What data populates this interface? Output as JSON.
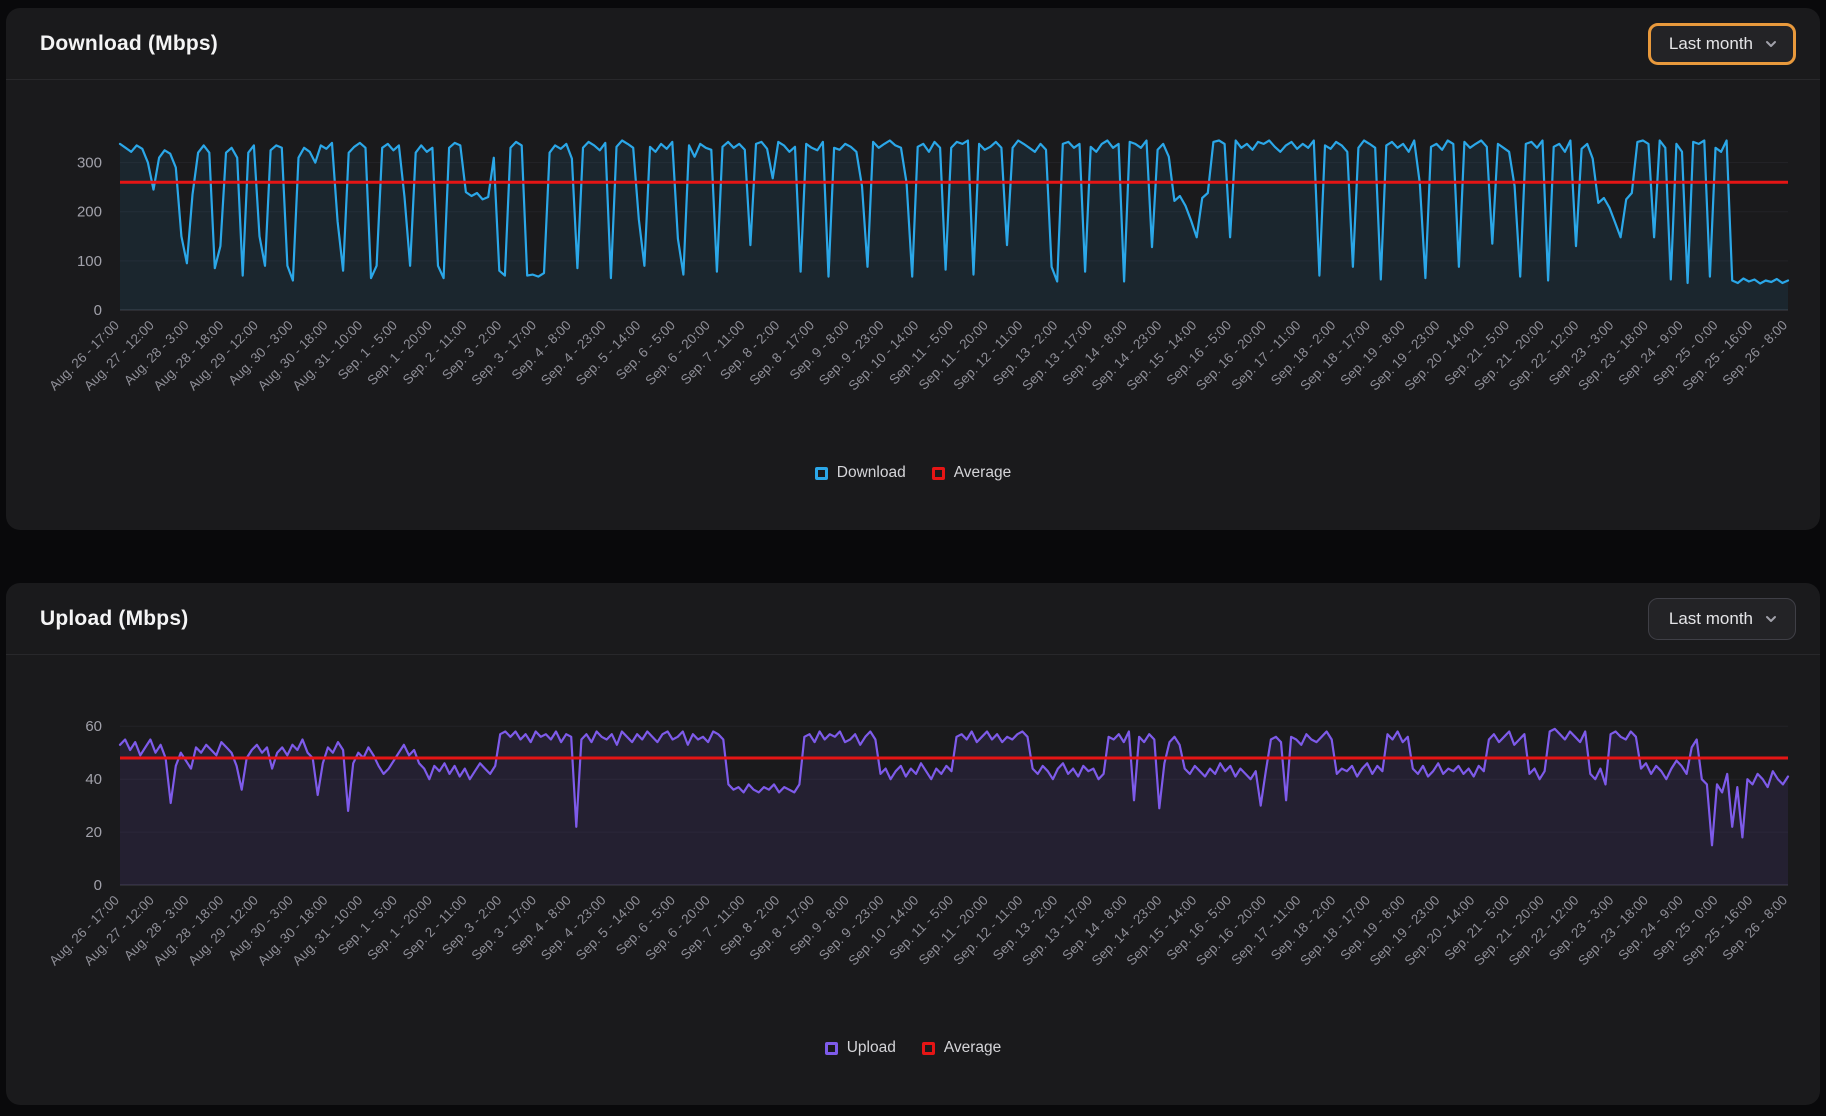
{
  "page": {
    "background": "#09090b",
    "card_background": "#1a1a1c"
  },
  "download_card": {
    "title": "Download (Mbps)",
    "range_selector": {
      "label": "Last month",
      "focused": true,
      "focus_ring_color": "#e8993c"
    }
  },
  "upload_card": {
    "title": "Upload (Mbps)",
    "range_selector": {
      "label": "Last month",
      "focused": false
    }
  },
  "chart_data": [
    {
      "type": "line",
      "title": "Download (Mbps)",
      "grid": "horizontal",
      "legend_position": "bottom",
      "ylim": [
        0,
        350
      ],
      "y_ticks": [
        0,
        100,
        200,
        300
      ],
      "average_line": {
        "name": "Average",
        "value": 260,
        "color": "#e51515"
      },
      "x_tick_labels": [
        "Aug. 26 - 17:00",
        "Aug. 27 - 12:00",
        "Aug. 28 - 3:00",
        "Aug. 28 - 18:00",
        "Aug. 29 - 12:00",
        "Aug. 30 - 3:00",
        "Aug. 30 - 18:00",
        "Aug. 31 - 10:00",
        "Sep. 1 - 5:00",
        "Sep. 1 - 20:00",
        "Sep. 2 - 11:00",
        "Sep. 3 - 2:00",
        "Sep. 3 - 17:00",
        "Sep. 4 - 8:00",
        "Sep. 4 - 23:00",
        "Sep. 5 - 14:00",
        "Sep. 6 - 5:00",
        "Sep. 6 - 20:00",
        "Sep. 7 - 11:00",
        "Sep. 8 - 2:00",
        "Sep. 8 - 17:00",
        "Sep. 9 - 8:00",
        "Sep. 9 - 23:00",
        "Sep. 10 - 14:00",
        "Sep. 11 - 5:00",
        "Sep. 11 - 20:00",
        "Sep. 12 - 11:00",
        "Sep. 13 - 2:00",
        "Sep. 13 - 17:00",
        "Sep. 14 - 8:00",
        "Sep. 14 - 23:00",
        "Sep. 15 - 14:00",
        "Sep. 16 - 5:00",
        "Sep. 16 - 20:00",
        "Sep. 17 - 11:00",
        "Sep. 18 - 2:00",
        "Sep. 18 - 17:00",
        "Sep. 19 - 8:00",
        "Sep. 19 - 23:00",
        "Sep. 20 - 14:00",
        "Sep. 21 - 5:00",
        "Sep. 21 - 20:00",
        "Sep. 22 - 12:00",
        "Sep. 23 - 3:00",
        "Sep. 23 - 18:00",
        "Sep. 24 - 9:00",
        "Sep. 25 - 0:00",
        "Sep. 25 - 16:00",
        "Sep. 26 - 8:00"
      ],
      "series": [
        {
          "name": "Download",
          "color": "#2ba7e8",
          "fill": "rgba(43,167,232,0.09)",
          "values": [
            338,
            330,
            322,
            335,
            328,
            300,
            245,
            310,
            325,
            318,
            290,
            150,
            95,
            235,
            320,
            335,
            320,
            85,
            130,
            320,
            330,
            310,
            70,
            320,
            335,
            150,
            90,
            325,
            335,
            330,
            90,
            60,
            310,
            330,
            322,
            300,
            335,
            328,
            340,
            180,
            80,
            320,
            332,
            340,
            330,
            65,
            90,
            330,
            338,
            325,
            335,
            230,
            90,
            320,
            335,
            322,
            330,
            90,
            65,
            330,
            340,
            335,
            240,
            232,
            238,
            225,
            230,
            310,
            80,
            70,
            330,
            342,
            335,
            70,
            72,
            68,
            75,
            320,
            335,
            328,
            338,
            308,
            85,
            330,
            342,
            335,
            325,
            340,
            65,
            332,
            345,
            338,
            330,
            185,
            90,
            332,
            322,
            338,
            328,
            342,
            145,
            72,
            335,
            312,
            338,
            330,
            326,
            78,
            332,
            342,
            330,
            338,
            326,
            132,
            338,
            342,
            328,
            268,
            342,
            335,
            322,
            332,
            78,
            338,
            330,
            325,
            342,
            68,
            330,
            326,
            338,
            332,
            322,
            252,
            88,
            342,
            330,
            338,
            345,
            335,
            330,
            258,
            68,
            332,
            338,
            322,
            342,
            330,
            82,
            330,
            342,
            338,
            345,
            72,
            338,
            326,
            332,
            342,
            330,
            132,
            330,
            345,
            338,
            330,
            322,
            338,
            326,
            88,
            58,
            338,
            342,
            330,
            338,
            78,
            332,
            322,
            338,
            345,
            330,
            338,
            58,
            342,
            338,
            330,
            345,
            128,
            326,
            338,
            312,
            222,
            232,
            212,
            182,
            148,
            228,
            238,
            342,
            345,
            338,
            148,
            345,
            330,
            338,
            326,
            342,
            338,
            345,
            332,
            322,
            335,
            342,
            328,
            338,
            330,
            345,
            70,
            335,
            328,
            342,
            335,
            322,
            88,
            330,
            345,
            338,
            330,
            62,
            335,
            342,
            330,
            338,
            322,
            345,
            258,
            65,
            332,
            338,
            326,
            345,
            338,
            88,
            342,
            330,
            338,
            345,
            332,
            135,
            338,
            330,
            322,
            252,
            68,
            338,
            342,
            330,
            345,
            60,
            332,
            338,
            322,
            345,
            130,
            328,
            338,
            308,
            218,
            228,
            208,
            178,
            148,
            225,
            238,
            342,
            345,
            338,
            148,
            345,
            330,
            62,
            338,
            322,
            55,
            342,
            338,
            345,
            68,
            330,
            322,
            345,
            60,
            55,
            64,
            58,
            62,
            54,
            60,
            57,
            63,
            55,
            60
          ]
        }
      ]
    },
    {
      "type": "line",
      "title": "Upload (Mbps)",
      "grid": "horizontal",
      "legend_position": "bottom",
      "ylim": [
        0,
        65
      ],
      "y_ticks": [
        0,
        20,
        40,
        60
      ],
      "average_line": {
        "name": "Average",
        "value": 48,
        "color": "#e51515"
      },
      "x_tick_labels": [
        "Aug. 26 - 17:00",
        "Aug. 27 - 12:00",
        "Aug. 28 - 3:00",
        "Aug. 28 - 18:00",
        "Aug. 29 - 12:00",
        "Aug. 30 - 3:00",
        "Aug. 30 - 18:00",
        "Aug. 31 - 10:00",
        "Sep. 1 - 5:00",
        "Sep. 1 - 20:00",
        "Sep. 2 - 11:00",
        "Sep. 3 - 2:00",
        "Sep. 3 - 17:00",
        "Sep. 4 - 8:00",
        "Sep. 4 - 23:00",
        "Sep. 5 - 14:00",
        "Sep. 6 - 5:00",
        "Sep. 6 - 20:00",
        "Sep. 7 - 11:00",
        "Sep. 8 - 2:00",
        "Sep. 8 - 17:00",
        "Sep. 9 - 8:00",
        "Sep. 9 - 23:00",
        "Sep. 10 - 14:00",
        "Sep. 11 - 5:00",
        "Sep. 11 - 20:00",
        "Sep. 12 - 11:00",
        "Sep. 13 - 2:00",
        "Sep. 13 - 17:00",
        "Sep. 14 - 8:00",
        "Sep. 14 - 23:00",
        "Sep. 15 - 14:00",
        "Sep. 16 - 5:00",
        "Sep. 16 - 20:00",
        "Sep. 17 - 11:00",
        "Sep. 18 - 2:00",
        "Sep. 18 - 17:00",
        "Sep. 19 - 8:00",
        "Sep. 19 - 23:00",
        "Sep. 20 - 14:00",
        "Sep. 21 - 5:00",
        "Sep. 21 - 20:00",
        "Sep. 22 - 12:00",
        "Sep. 23 - 3:00",
        "Sep. 23 - 18:00",
        "Sep. 24 - 9:00",
        "Sep. 25 - 0:00",
        "Sep. 25 - 16:00",
        "Sep. 26 - 8:00"
      ],
      "series": [
        {
          "name": "Upload",
          "color": "#7e5bea",
          "fill": "rgba(126,91,234,0.10)",
          "values": [
            53,
            55,
            51,
            54,
            49,
            52,
            55,
            50,
            53,
            48,
            31,
            45,
            50,
            47,
            44,
            52,
            50,
            53,
            51,
            49,
            54,
            52,
            50,
            45,
            36,
            48,
            51,
            53,
            50,
            52,
            44,
            50,
            52,
            49,
            53,
            51,
            55,
            50,
            48,
            34,
            46,
            52,
            50,
            54,
            51,
            28,
            46,
            50,
            48,
            52,
            49,
            45,
            42,
            44,
            47,
            50,
            53,
            49,
            51,
            46,
            44,
            40,
            45,
            43,
            46,
            42,
            45,
            41,
            44,
            40,
            43,
            46,
            44,
            42,
            45,
            57,
            58,
            56,
            58,
            55,
            57,
            54,
            58,
            56,
            57,
            55,
            58,
            54,
            57,
            56,
            22,
            55,
            57,
            54,
            58,
            56,
            55,
            57,
            53,
            58,
            56,
            54,
            57,
            55,
            58,
            56,
            54,
            57,
            58,
            55,
            56,
            58,
            53,
            57,
            55,
            56,
            54,
            58,
            57,
            55,
            38,
            36,
            37,
            35,
            38,
            36,
            35,
            37,
            36,
            38,
            35,
            37,
            36,
            35,
            38,
            56,
            57,
            54,
            58,
            55,
            57,
            56,
            58,
            54,
            55,
            57,
            53,
            56,
            58,
            55,
            42,
            44,
            40,
            43,
            45,
            41,
            44,
            42,
            46,
            43,
            40,
            44,
            42,
            45,
            43,
            56,
            57,
            55,
            58,
            54,
            56,
            58,
            55,
            57,
            54,
            56,
            55,
            57,
            58,
            56,
            44,
            42,
            45,
            43,
            40,
            44,
            46,
            42,
            44,
            41,
            45,
            43,
            44,
            40,
            42,
            56,
            55,
            57,
            54,
            58,
            32,
            56,
            54,
            57,
            55,
            29,
            46,
            54,
            56,
            53,
            44,
            42,
            45,
            43,
            41,
            44,
            42,
            46,
            43,
            45,
            41,
            44,
            42,
            40,
            43,
            30,
            43,
            55,
            56,
            54,
            32,
            56,
            55,
            53,
            57,
            55,
            54,
            56,
            58,
            55,
            42,
            44,
            43,
            45,
            41,
            44,
            46,
            42,
            45,
            43,
            57,
            55,
            58,
            54,
            56,
            44,
            42,
            45,
            41,
            43,
            46,
            42,
            44,
            43,
            45,
            42,
            44,
            41,
            45,
            43,
            55,
            57,
            54,
            56,
            58,
            53,
            55,
            57,
            42,
            44,
            40,
            43,
            58,
            59,
            57,
            55,
            58,
            56,
            54,
            58,
            42,
            40,
            44,
            38,
            57,
            58,
            56,
            55,
            58,
            56,
            44,
            46,
            42,
            45,
            43,
            40,
            44,
            47,
            45,
            42,
            52,
            55,
            40,
            38,
            15,
            38,
            35,
            42,
            22,
            37,
            18,
            40,
            38,
            42,
            40,
            37,
            43,
            40,
            38,
            41
          ]
        }
      ]
    }
  ]
}
